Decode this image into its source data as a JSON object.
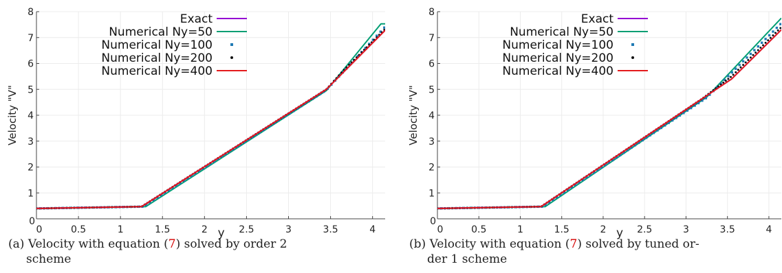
{
  "captions": [
    {
      "tag": "(a)",
      "pre": "Velocity with equation (",
      "ref": "7",
      "post": ") solved by order 2",
      "line2": "scheme"
    },
    {
      "tag": "(b)",
      "pre": "Velocity with equation (",
      "ref": "7",
      "post": ") solved by tuned or-",
      "line2": "der 1 scheme"
    }
  ],
  "colors": {
    "exact": "#9400d3",
    "ny50": "#009e73",
    "ny100": "#1f7ab4",
    "ny200": "#111111",
    "ny400": "#e41a1c"
  },
  "chart_data": [
    {
      "type": "line",
      "title": "",
      "xlabel": "y",
      "ylabel": "Velocity \"V\"",
      "xlim": [
        0,
        4.15
      ],
      "ylim": [
        0,
        8
      ],
      "xticks": [
        "0",
        "0.5",
        "1",
        "1.5",
        "2",
        "2.5",
        "3",
        "3.5",
        "4"
      ],
      "yticks": [
        "0",
        "1",
        "2",
        "3",
        "4",
        "5",
        "6",
        "7",
        "8"
      ],
      "grid": true,
      "legend": "top-left",
      "series": [
        {
          "name": "Exact",
          "style": "line",
          "x": [
            0,
            1.25,
            3.45,
            3.65,
            4.15
          ],
          "y": [
            0.4,
            0.47,
            5.0,
            5.65,
            7.28
          ]
        },
        {
          "name": "Numerical Ny=50",
          "style": "line",
          "x": [
            0,
            1.3,
            3.45,
            4.1,
            4.15
          ],
          "y": [
            0.4,
            0.47,
            4.95,
            7.53,
            7.53
          ]
        },
        {
          "name": "Numerical Ny=100",
          "style": "dots",
          "x": [
            0,
            1.27,
            3.45,
            4.15
          ],
          "y": [
            0.4,
            0.47,
            4.97,
            7.42
          ]
        },
        {
          "name": "Numerical Ny=200",
          "style": "dots",
          "x": [
            0,
            1.25,
            3.45,
            3.65,
            4.15
          ],
          "y": [
            0.4,
            0.47,
            5.0,
            5.72,
            7.33
          ]
        },
        {
          "name": "Numerical Ny=400",
          "style": "line",
          "x": [
            0,
            1.25,
            3.45,
            3.65,
            4.15
          ],
          "y": [
            0.4,
            0.47,
            5.0,
            5.65,
            7.28
          ]
        }
      ]
    },
    {
      "type": "line",
      "title": "",
      "xlabel": "y",
      "ylabel": "Velocity \"V\"",
      "xlim": [
        0,
        4.15
      ],
      "ylim": [
        0,
        8
      ],
      "xticks": [
        "0",
        "0.5",
        "1",
        "1.5",
        "2",
        "2.5",
        "3",
        "3.5",
        "4"
      ],
      "yticks": [
        "0",
        "1",
        "2",
        "3",
        "4",
        "5",
        "6",
        "7",
        "8"
      ],
      "grid": true,
      "legend": "top-left",
      "series": [
        {
          "name": "Exact",
          "style": "line",
          "x": [
            0,
            1.25,
            3.2,
            3.55,
            4.15
          ],
          "y": [
            0.4,
            0.47,
            4.65,
            5.4,
            7.3
          ]
        },
        {
          "name": "Numerical Ny=50",
          "style": "line",
          "x": [
            0,
            1.3,
            3.25,
            4.15
          ],
          "y": [
            0.4,
            0.47,
            4.7,
            7.75
          ]
        },
        {
          "name": "Numerical Ny=100",
          "style": "dots",
          "x": [
            0,
            1.27,
            3.25,
            4.15
          ],
          "y": [
            0.4,
            0.47,
            4.68,
            7.55
          ]
        },
        {
          "name": "Numerical Ny=200",
          "style": "dots",
          "x": [
            0,
            1.25,
            3.2,
            3.55,
            4.15
          ],
          "y": [
            0.4,
            0.47,
            4.65,
            5.5,
            7.4
          ]
        },
        {
          "name": "Numerical Ny=400",
          "style": "line",
          "x": [
            0,
            1.25,
            3.2,
            3.55,
            4.15
          ],
          "y": [
            0.4,
            0.47,
            4.65,
            5.4,
            7.3
          ]
        }
      ]
    }
  ]
}
